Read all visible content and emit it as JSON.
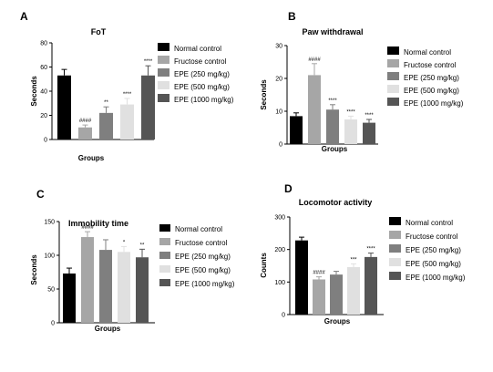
{
  "legend": [
    "Normal control",
    "Fructose control",
    "EPE (250 mg/kg)",
    "EPE (500 mg/kg)",
    "EPE (1000 mg/kg)"
  ],
  "colors": {
    "series": [
      "#000000",
      "#a6a6a6",
      "#7f7f7f",
      "#e0e0e0",
      "#555555"
    ],
    "axis": "#000000"
  },
  "chart_data": [
    {
      "type": "bar",
      "panel_letter": "A",
      "title": "FoT",
      "xlabel": "Groups",
      "ylabel": "Seconds",
      "ylim": [
        0,
        80
      ],
      "yticks": [
        0,
        20,
        40,
        60,
        80
      ],
      "legend_position": "right",
      "categories": [
        "Normal control",
        "Fructose control",
        "EPE (250 mg/kg)",
        "EPE (500 mg/kg)",
        "EPE (1000 mg/kg)"
      ],
      "values": [
        53,
        10,
        22,
        29,
        53
      ],
      "errors": [
        5,
        2,
        5,
        5,
        8
      ],
      "annotations": [
        "",
        "####",
        "**",
        "****",
        "****"
      ]
    },
    {
      "type": "bar",
      "panel_letter": "B",
      "title": "Paw withdrawal",
      "xlabel": "Groups",
      "ylabel": "Seconds",
      "ylim": [
        0,
        30
      ],
      "yticks": [
        0,
        10,
        20,
        30
      ],
      "legend_position": "right",
      "categories": [
        "Normal control",
        "Fructose control",
        "EPE (250 mg/kg)",
        "EPE (500 mg/kg)",
        "EPE (1000 mg/kg)"
      ],
      "values": [
        8.5,
        21,
        10.5,
        7.5,
        6.5
      ],
      "errors": [
        1,
        3.5,
        1.5,
        1,
        1
      ],
      "annotations": [
        "",
        "####",
        "****",
        "****",
        "****"
      ]
    },
    {
      "type": "bar",
      "panel_letter": "C",
      "title": "Immobility time",
      "xlabel": "Groups",
      "ylabel": "Seconds",
      "ylim": [
        0,
        150
      ],
      "yticks": [
        0,
        50,
        100,
        150
      ],
      "legend_position": "right",
      "categories": [
        "Normal control",
        "Fructose control",
        "EPE (250 mg/kg)",
        "EPE (500 mg/kg)",
        "EPE (1000 mg/kg)"
      ],
      "values": [
        73,
        127,
        108,
        105,
        97
      ],
      "errors": [
        8,
        8,
        15,
        8,
        12
      ],
      "annotations": [
        "",
        "####",
        "",
        "*",
        "**"
      ]
    },
    {
      "type": "bar",
      "panel_letter": "D",
      "title": "Locomotor activity",
      "xlabel": "Groups",
      "ylabel": "Counts",
      "ylim": [
        0,
        300
      ],
      "yticks": [
        0,
        100,
        200,
        300
      ],
      "legend_position": "right",
      "categories": [
        "Normal control",
        "Fructose control",
        "EPE (250 mg/kg)",
        "EPE (500 mg/kg)",
        "EPE (1000 mg/kg)"
      ],
      "values": [
        228,
        108,
        123,
        146,
        177
      ],
      "errors": [
        10,
        8,
        10,
        10,
        12
      ],
      "annotations": [
        "",
        "####",
        "",
        "***",
        "****"
      ]
    }
  ]
}
